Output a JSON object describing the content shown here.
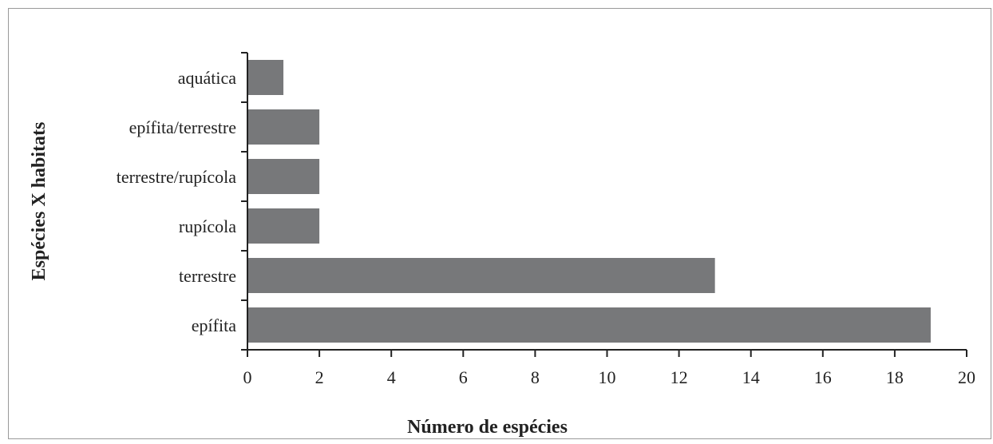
{
  "chart_data": {
    "type": "bar",
    "orientation": "horizontal",
    "categories": [
      "aquática",
      "epífita/terrestre",
      "terrestre/rupícola",
      "rupícola",
      "terrestre",
      "epífita"
    ],
    "values": [
      1,
      2,
      2,
      2,
      13,
      19
    ],
    "xlabel": "Número de espécies",
    "ylabel": "Espécies X habitats",
    "xlim": [
      0,
      20
    ],
    "xticks": [
      0,
      2,
      4,
      6,
      8,
      10,
      12,
      14,
      16,
      18,
      20
    ],
    "grid": false,
    "bar_color": "#77787a"
  }
}
